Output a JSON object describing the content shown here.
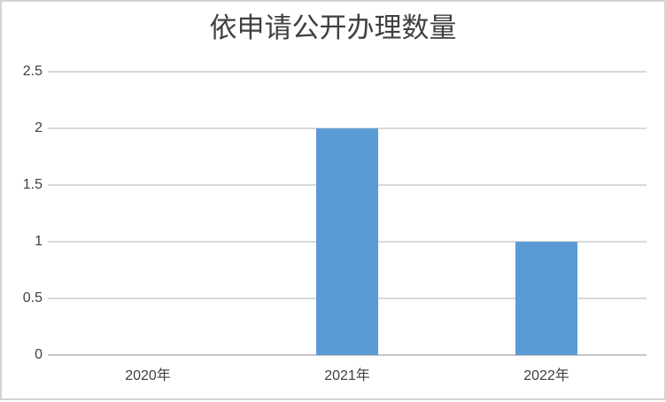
{
  "chart_data": {
    "type": "bar",
    "title": "依申请公开办理数量",
    "categories": [
      "2020年",
      "2021年",
      "2022年"
    ],
    "values": [
      0,
      2,
      1
    ],
    "series": [
      {
        "name": "依申请公开办理数量",
        "values": [
          0,
          2,
          1
        ]
      }
    ],
    "xlabel": "",
    "ylabel": "",
    "ylim": [
      0,
      2.5
    ],
    "y_ticks": [
      0,
      0.5,
      1,
      1.5,
      2,
      2.5
    ],
    "y_tick_labels": [
      "0",
      "0.5",
      "1",
      "1.5",
      "2",
      "2.5"
    ],
    "grid": true,
    "legend_position": "none",
    "colors": {
      "bar": "#5B9BD5",
      "gridline": "#D9D9D9",
      "axis_line": "#C6C6C6",
      "text": "#404040",
      "border": "#D3D3D3",
      "background": "#FFFFFF"
    }
  }
}
